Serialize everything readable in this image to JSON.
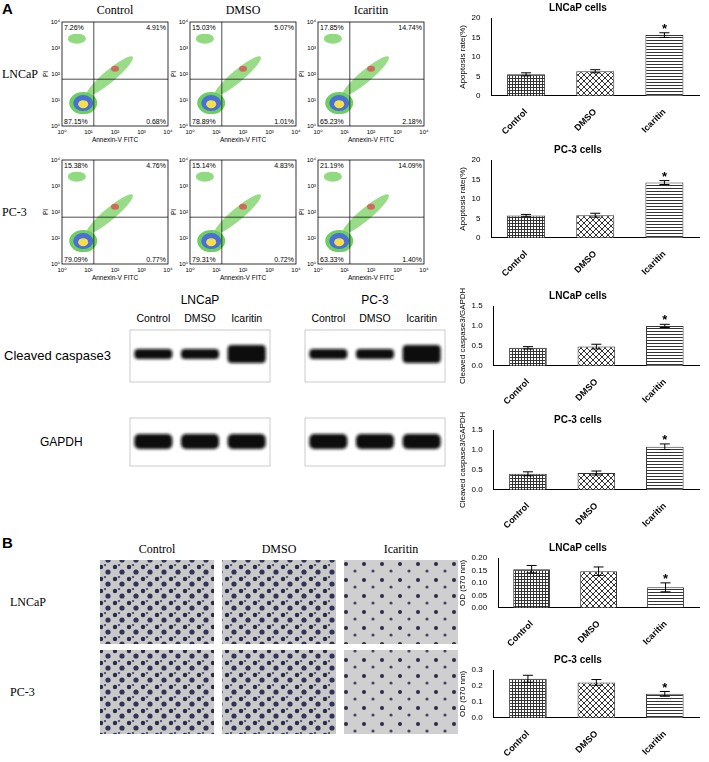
{
  "panels": [
    "A",
    "B"
  ],
  "flow": {
    "x_label": "Annexin-V FITC",
    "y_label": "PI",
    "ticks": [
      "10⁰",
      "10¹",
      "10²",
      "10³",
      "10⁴"
    ],
    "columns": [
      "Control",
      "DMSO",
      "Icaritin"
    ],
    "rows": [
      {
        "label": "LNCaP",
        "plots": [
          {
            "UL": "7.26%",
            "UR": "4.91%",
            "LL": "87.15%",
            "LR": "0.68%"
          },
          {
            "UL": "15.03%",
            "UR": "5.07%",
            "LL": "78.89%",
            "LR": "1.01%"
          },
          {
            "UL": "17.85%",
            "UR": "14.74%",
            "LL": "65.23%",
            "LR": "2.18%"
          }
        ]
      },
      {
        "label": "PC-3",
        "plots": [
          {
            "UL": "15.38%",
            "UR": "4.76%",
            "LL": "79.09%",
            "LR": "0.77%"
          },
          {
            "UL": "15.14%",
            "UR": "4.83%",
            "LL": "79.31%",
            "LR": "0.72%"
          },
          {
            "UL": "21.19%",
            "UR": "14.09%",
            "LL": "63.33%",
            "LR": "1.40%"
          }
        ]
      }
    ]
  },
  "western": {
    "groups": [
      "LNCaP",
      "PC-3"
    ],
    "lanes": [
      "Control",
      "DMSO",
      "Icaritin"
    ],
    "rows": [
      "Cleaved caspase3",
      "GAPDH"
    ]
  },
  "transwell": {
    "columns": [
      "Control",
      "DMSO",
      "Icaritin"
    ],
    "rows": [
      "LNCaP",
      "PC-3"
    ]
  },
  "chart_data": [
    {
      "type": "bar",
      "title": "LNCaP cells",
      "y_label": "Apoptosis rate(%)",
      "categories": [
        "Control",
        "DMSO",
        "Icaritin"
      ],
      "values": [
        5.5,
        6.3,
        15.6
      ],
      "errors": [
        0.4,
        0.4,
        0.6
      ],
      "color": "#333333",
      "ylim": [
        0,
        20
      ],
      "yticks": [
        0,
        5,
        10,
        15,
        20
      ],
      "grid": false,
      "annotations": [
        {
          "category": "Icaritin",
          "text": "*"
        }
      ]
    },
    {
      "type": "bar",
      "title": "PC-3 cells",
      "y_label": "Apoptosis rate(%)",
      "categories": [
        "Control",
        "DMSO",
        "Icaritin"
      ],
      "values": [
        5.7,
        5.8,
        14.2
      ],
      "errors": [
        0.3,
        0.5,
        0.5
      ],
      "color": "#333333",
      "ylim": [
        0,
        20
      ],
      "yticks": [
        0,
        5,
        10,
        15,
        20
      ],
      "grid": false,
      "annotations": [
        {
          "category": "Icaritin",
          "text": "*"
        }
      ]
    },
    {
      "type": "bar",
      "title": "LNCaP cells",
      "y_label": "Cleaved caspase3/GAPDH",
      "categories": [
        "Control",
        "DMSO",
        "Icaritin"
      ],
      "values": [
        0.45,
        0.48,
        1.0
      ],
      "errors": [
        0.03,
        0.06,
        0.04
      ],
      "color": "#333333",
      "ylim": [
        0,
        1.5
      ],
      "yticks": [
        {
          "value": 0,
          "label": "0.0"
        },
        {
          "value": 0.5,
          "label": "0.5"
        },
        {
          "value": 1,
          "label": "1.0"
        },
        {
          "value": 1.5,
          "label": "1.5"
        }
      ],
      "grid": false,
      "annotations": [
        {
          "category": "Icaritin",
          "text": "*"
        }
      ]
    },
    {
      "type": "bar",
      "title": "PC-3 cells",
      "y_label": "Cleaved caspase3/GAPDH",
      "categories": [
        "Control",
        "DMSO",
        "Icaritin"
      ],
      "values": [
        0.4,
        0.42,
        1.08
      ],
      "errors": [
        0.05,
        0.05,
        0.07
      ],
      "color": "#333333",
      "ylim": [
        0,
        1.5
      ],
      "yticks": [
        {
          "value": 0,
          "label": "0.0"
        },
        {
          "value": 0.5,
          "label": "0.5"
        },
        {
          "value": 1,
          "label": "1.0"
        },
        {
          "value": 1.5,
          "label": "1.5"
        }
      ],
      "grid": false,
      "annotations": [
        {
          "category": "Icaritin",
          "text": "*"
        }
      ]
    },
    {
      "type": "bar",
      "title": "LNCaP cells",
      "y_label": "OD (570 nm)",
      "categories": [
        "Control",
        "DMSO",
        "Icaritin"
      ],
      "values": [
        0.155,
        0.147,
        0.082
      ],
      "errors": [
        0.015,
        0.017,
        0.018
      ],
      "color": "#333333",
      "ylim": [
        0,
        0.2
      ],
      "yticks": [
        {
          "value": 0,
          "label": "0.00"
        },
        {
          "value": 0.05,
          "label": "0.05"
        },
        {
          "value": 0.1,
          "label": "0.10"
        },
        {
          "value": 0.15,
          "label": "0.15"
        },
        {
          "value": 0.2,
          "label": "0.20"
        }
      ],
      "grid": false,
      "annotations": [
        {
          "category": "Icaritin",
          "text": "*"
        }
      ]
    },
    {
      "type": "bar",
      "title": "PC-3 cells",
      "y_label": "OD (570 nm)",
      "categories": [
        "Control",
        "DMSO",
        "Icaritin"
      ],
      "values": [
        0.245,
        0.222,
        0.15
      ],
      "errors": [
        0.022,
        0.018,
        0.015
      ],
      "color": "#333333",
      "ylim": [
        0,
        0.3
      ],
      "yticks": [
        {
          "value": 0,
          "label": "0.0"
        },
        {
          "value": 0.1,
          "label": "0.1"
        },
        {
          "value": 0.2,
          "label": "0.2"
        },
        {
          "value": 0.3,
          "label": "0.3"
        }
      ],
      "grid": false,
      "annotations": [
        {
          "category": "Icaritin",
          "text": "*"
        }
      ]
    }
  ]
}
